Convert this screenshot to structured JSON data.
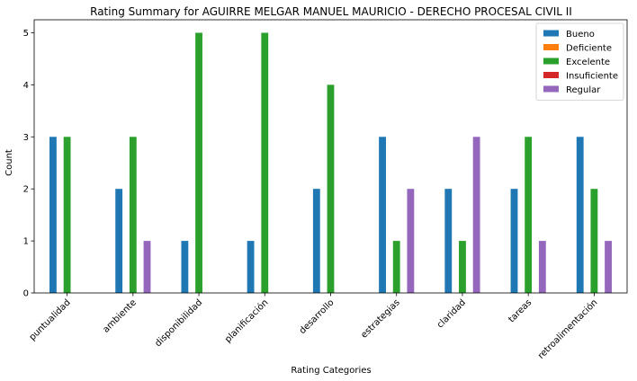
{
  "chart_data": {
    "type": "bar",
    "title": "Rating Summary for AGUIRRE MELGAR MANUEL MAURICIO - DERECHO PROCESAL CIVIL II",
    "xlabel": "Rating Categories",
    "ylabel": "Count",
    "ylim": [
      0,
      5.25
    ],
    "yticks": [
      0,
      1,
      2,
      3,
      4,
      5
    ],
    "grid": false,
    "legend_position": "top-right",
    "categories": [
      "puntualidad",
      "ambiente",
      "disponibilidad",
      "planificación",
      "desarrollo",
      "estrategias",
      "claridad",
      "tareas",
      "retroalimentación"
    ],
    "series": [
      {
        "name": "Bueno",
        "color": "#1f77b4",
        "values": [
          3,
          2,
          1,
          1,
          2,
          3,
          2,
          2,
          3
        ]
      },
      {
        "name": "Deficiente",
        "color": "#ff7f0e",
        "values": [
          0,
          0,
          0,
          0,
          0,
          0,
          0,
          0,
          0
        ]
      },
      {
        "name": "Excelente",
        "color": "#2ca02c",
        "values": [
          3,
          3,
          5,
          5,
          4,
          1,
          1,
          3,
          2
        ]
      },
      {
        "name": "Insuficiente",
        "color": "#d62728",
        "values": [
          0,
          0,
          0,
          0,
          0,
          0,
          0,
          0,
          0
        ]
      },
      {
        "name": "Regular",
        "color": "#9467bd",
        "values": [
          0,
          1,
          0,
          0,
          0,
          2,
          3,
          1,
          1
        ]
      }
    ]
  }
}
